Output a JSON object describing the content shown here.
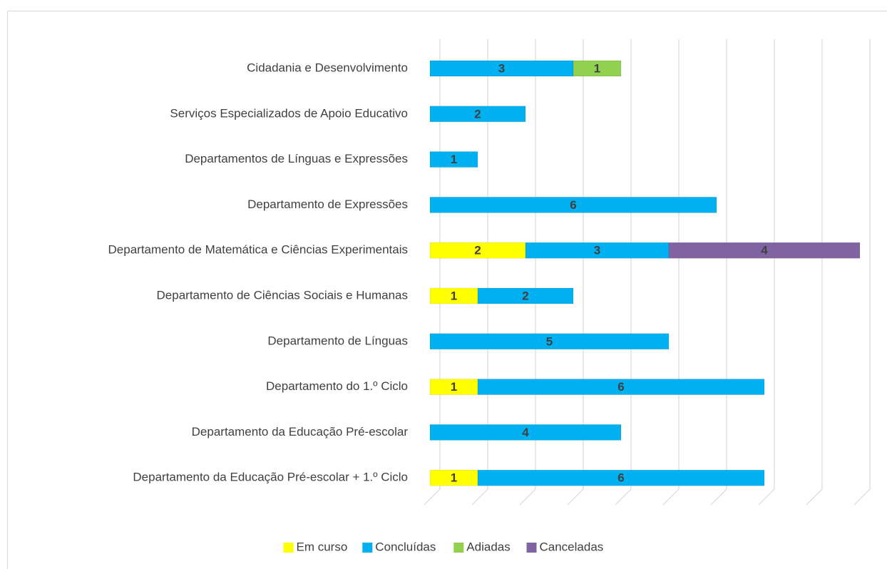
{
  "chart_data": {
    "type": "stacked_barh",
    "categories": [
      "Cidadania e Desenvolvimento",
      "Serviços Especializados de Apoio Educativo",
      "Departamentos de Línguas e Expressões",
      "Departamento de Expressões",
      "Departamento de Matemática e Ciências Experimentais",
      "Departamento de Ciências Sociais e Humanas ",
      "Departamento de Línguas",
      "Departamento do 1.º Ciclo ",
      "Departamento da Educação Pré-escolar",
      "Departamento da Educação Pré-escolar + 1.º Ciclo"
    ],
    "series": [
      {
        "name": "Em curso",
        "color": "#ffff00",
        "values": [
          null,
          null,
          null,
          null,
          2,
          1,
          null,
          1,
          null,
          1
        ]
      },
      {
        "name": "Concluídas",
        "color": "#00b0f0",
        "values": [
          3,
          2,
          1,
          6,
          3,
          2,
          5,
          6,
          4,
          6
        ]
      },
      {
        "name": "Adiadas",
        "color": "#92d050",
        "values": [
          1,
          null,
          null,
          null,
          null,
          null,
          null,
          null,
          null,
          null
        ]
      },
      {
        "name": "Canceladas",
        "color": "#8064a2",
        "values": [
          null,
          null,
          null,
          null,
          4,
          null,
          null,
          null,
          null,
          null
        ]
      }
    ],
    "xlim": [
      0,
      9
    ],
    "xticks": [
      0,
      1,
      2,
      3,
      4,
      5,
      6,
      7,
      8,
      9
    ],
    "grid": true,
    "legend": "bottom"
  }
}
